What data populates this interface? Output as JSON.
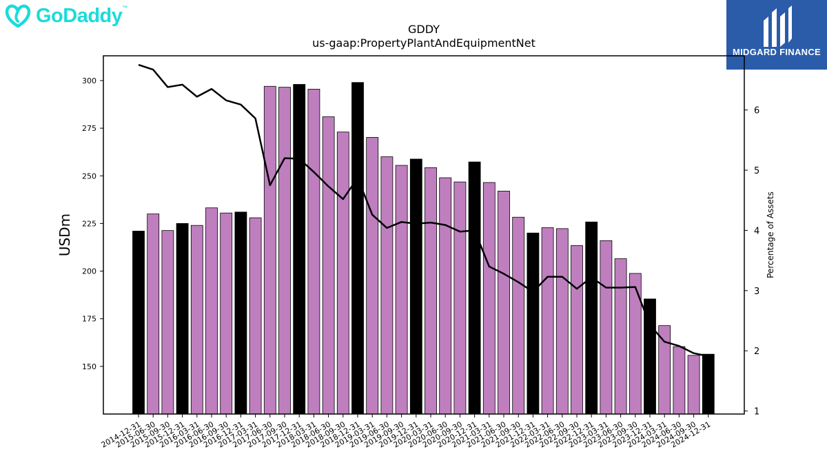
{
  "branding": {
    "company_logo_text": "GoDaddy",
    "company_logo_tm": "™",
    "company_color": "#1bdbdb",
    "publisher_name": "MIDGARD FINANCE",
    "publisher_color": "#2a5caa"
  },
  "chart_data": {
    "type": "bar",
    "title": "GDDY",
    "subtitle": "us-gaap:PropertyPlantAndEquipmentNet",
    "ylabel": "USDm",
    "y2label": "Percentage of Assets",
    "ylim": [
      125,
      313
    ],
    "y2lim": [
      0.95,
      6.9
    ],
    "yticks": [
      150,
      175,
      200,
      225,
      250,
      275,
      300
    ],
    "y2ticks": [
      1,
      2,
      3,
      4,
      5,
      6
    ],
    "bar_colors": {
      "quarter": "#bf7fbf",
      "year_end": "#000000"
    },
    "line_color": "#000000",
    "categories": [
      "2014-12-31",
      "2015-06-30",
      "2015-09-30",
      "2015-12-31",
      "2016-03-31",
      "2016-06-30",
      "2016-09-30",
      "2016-12-31",
      "2017-03-31",
      "2017-06-30",
      "2017-09-30",
      "2017-12-31",
      "2018-03-31",
      "2018-06-30",
      "2018-09-30",
      "2018-12-31",
      "2019-03-31",
      "2019-06-30",
      "2019-09-30",
      "2019-12-31",
      "2020-03-31",
      "2020-06-30",
      "2020-09-30",
      "2020-12-31",
      "2021-03-31",
      "2021-06-30",
      "2021-09-30",
      "2021-12-31",
      "2022-03-31",
      "2022-06-30",
      "2022-09-30",
      "2022-12-31",
      "2023-03-31",
      "2023-06-30",
      "2023-09-30",
      "2023-12-31",
      "2024-03-31",
      "2024-06-30",
      "2024-09-30",
      "2024-12-31"
    ],
    "series": [
      {
        "type": "bar",
        "values": [
          221.0,
          230.0,
          221.3,
          225.0,
          224.0,
          233.2,
          230.5,
          231.0,
          228.0,
          297.0,
          296.5,
          298.0,
          295.5,
          281.0,
          273.0,
          299.0,
          270.2,
          260.0,
          255.5,
          258.8,
          254.3,
          249.0,
          246.8,
          257.3,
          246.5,
          242.0,
          228.3,
          220.0,
          222.8,
          222.3,
          213.4,
          225.8,
          216.0,
          206.5,
          198.8,
          185.4,
          171.4,
          160.4,
          155.8,
          156.4
        ],
        "year_end": [
          true,
          false,
          false,
          true,
          false,
          false,
          false,
          true,
          false,
          false,
          false,
          true,
          false,
          false,
          false,
          true,
          false,
          false,
          false,
          true,
          false,
          false,
          false,
          true,
          false,
          false,
          false,
          true,
          false,
          false,
          false,
          true,
          false,
          false,
          false,
          true,
          false,
          false,
          false,
          true
        ]
      },
      {
        "type": "line",
        "axis": "right",
        "values": [
          6.75,
          6.67,
          6.38,
          6.42,
          6.22,
          6.35,
          6.16,
          6.09,
          5.86,
          4.75,
          5.2,
          5.19,
          4.97,
          4.73,
          4.52,
          4.87,
          4.26,
          4.04,
          4.14,
          4.11,
          4.13,
          4.09,
          3.98,
          4.0,
          3.4,
          3.28,
          3.14,
          2.98,
          3.23,
          3.23,
          3.03,
          3.22,
          3.05,
          3.05,
          3.06,
          2.43,
          2.15,
          2.08,
          1.96,
          1.91
        ]
      }
    ]
  }
}
